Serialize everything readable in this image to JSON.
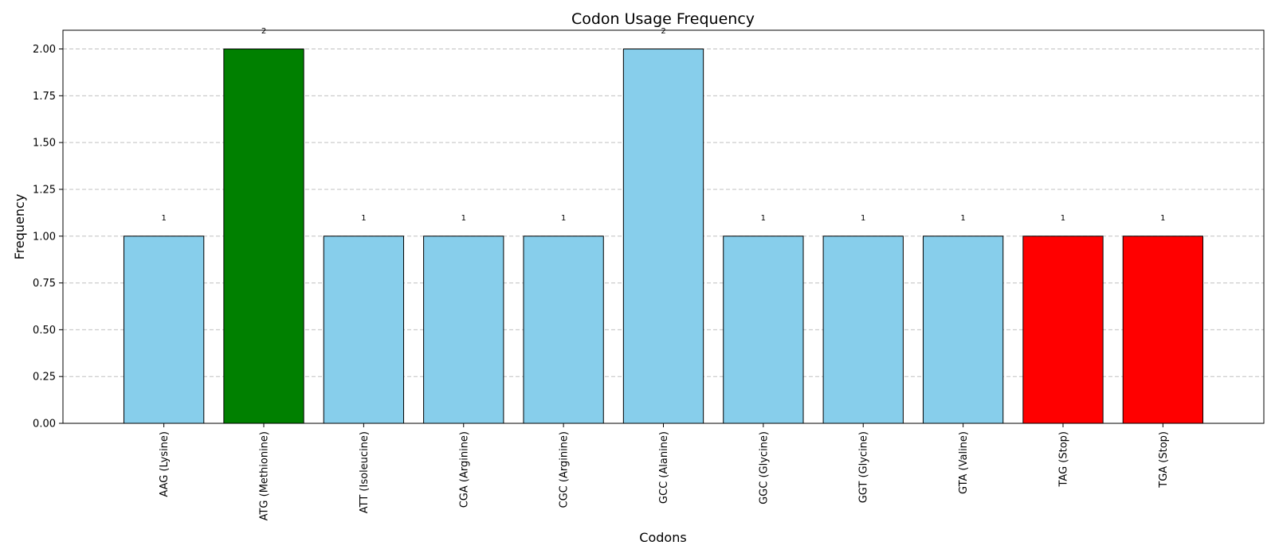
{
  "chart_data": {
    "type": "bar",
    "title": "Codon Usage Frequency",
    "xlabel": "Codons",
    "ylabel": "Frequency",
    "ylim": [
      0,
      2.1
    ],
    "yticks": [
      "0.00",
      "0.25",
      "0.50",
      "0.75",
      "1.00",
      "1.25",
      "1.50",
      "1.75",
      "2.00"
    ],
    "grid": "y",
    "categories": [
      "AAG (Lysine)",
      "ATG (Methionine)",
      "ATT (Isoleucine)",
      "CGA (Arginine)",
      "CGC (Arginine)",
      "GCC (Alanine)",
      "GGC (Glycine)",
      "GGT (Glycine)",
      "GTA (Valine)",
      "TAG (Stop)",
      "TGA (Stop)"
    ],
    "values": [
      1,
      2,
      1,
      1,
      1,
      2,
      1,
      1,
      1,
      1,
      1
    ],
    "data_labels": [
      "1",
      "2",
      "1",
      "1",
      "1",
      "2",
      "1",
      "1",
      "1",
      "1",
      "1"
    ],
    "colors": [
      "#87ceeb",
      "#008000",
      "#87ceeb",
      "#87ceeb",
      "#87ceeb",
      "#87ceeb",
      "#87ceeb",
      "#87ceeb",
      "#87ceeb",
      "#ff0000",
      "#ff0000"
    ]
  }
}
